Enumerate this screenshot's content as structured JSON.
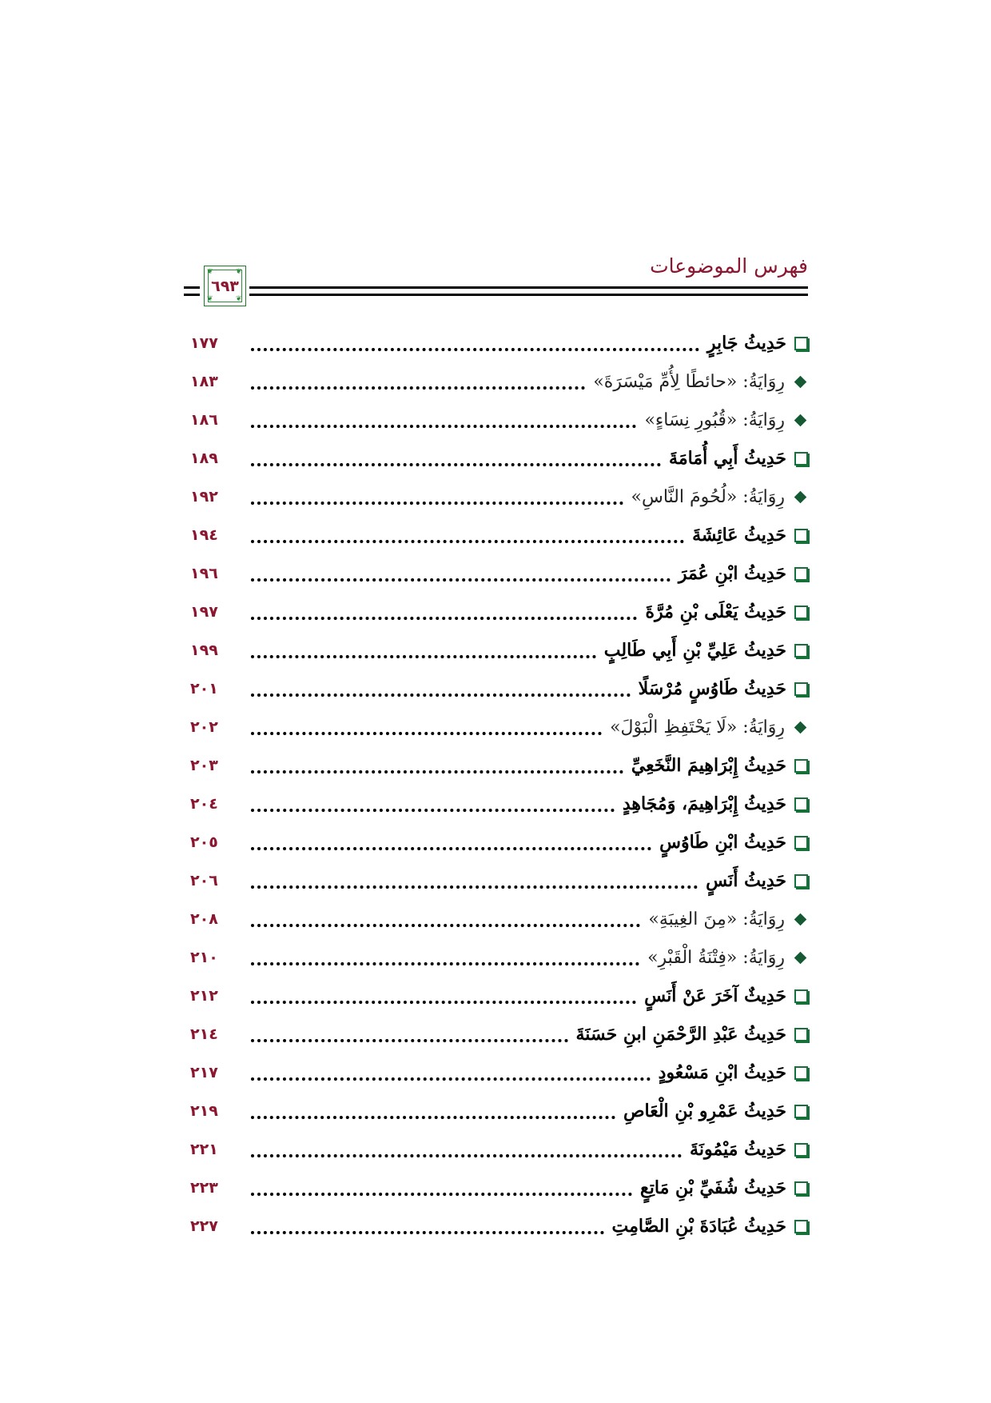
{
  "header": {
    "title": "فهرس الموضوعات",
    "page_number": "٦٩٣"
  },
  "colors": {
    "accent": "#8b1630",
    "icon": "#16703a"
  },
  "entries": [
    {
      "type": "main",
      "text": "حَدِيثُ جَابِرٍ",
      "page": "١٧٧"
    },
    {
      "type": "sub",
      "text": "رِوَايَةُ: «حائطًا لِأُمِّ مَيْسَرَةَ»",
      "page": "١٨٣"
    },
    {
      "type": "sub",
      "text": "رِوَايَةُ: «قُبُورِ نِسَاءٍ»",
      "page": "١٨٦"
    },
    {
      "type": "main",
      "text": "حَدِيثُ أَبِي أُمَامَةَ",
      "page": "١٨٩"
    },
    {
      "type": "sub",
      "text": "رِوَايَةُ: «لُحُومَ النَّاسِ»",
      "page": "١٩٢"
    },
    {
      "type": "main",
      "text": "حَدِيثُ عَائِشَةَ",
      "page": "١٩٤"
    },
    {
      "type": "main",
      "text": "حَدِيثُ ابْنِ عُمَرَ",
      "page": "١٩٦"
    },
    {
      "type": "main",
      "text": "حَدِيثُ يَعْلَى بْنِ مُرَّةَ",
      "page": "١٩٧"
    },
    {
      "type": "main",
      "text": "حَدِيثُ عَلِيِّ بْنِ أَبِي طَالِبٍ",
      "page": "١٩٩"
    },
    {
      "type": "main",
      "text": "حَدِيثُ طَاوُسٍ مُرْسَلًا",
      "page": "٢٠١"
    },
    {
      "type": "sub",
      "text": "رِوَايَةُ: «لَا يَحْتَفِظِ الْبَوْلَ»",
      "page": "٢٠٢"
    },
    {
      "type": "main",
      "text": "حَدِيثُ إِبْرَاهِيمَ النَّخَعِيِّ",
      "page": "٢٠٣"
    },
    {
      "type": "main",
      "text": "حَدِيثُ إِبْرَاهِيمَ، وَمُجَاهِدٍ",
      "page": "٢٠٤"
    },
    {
      "type": "main",
      "text": "حَدِيثُ ابْنِ طَاوُسٍ",
      "page": "٢٠٥"
    },
    {
      "type": "main",
      "text": "حَدِيثُ أَنَسٍ",
      "page": "٢٠٦"
    },
    {
      "type": "sub",
      "text": "رِوَايَةُ: «مِنَ الغِيبَةِ»",
      "page": "٢٠٨"
    },
    {
      "type": "sub",
      "text": "رِوَايَةُ: «فِتْنَةُ الْقَبْرِ»",
      "page": "٢١٠"
    },
    {
      "type": "main",
      "text": "حَدِيثٌ آخَرَ عَنْ أَنَسٍ",
      "page": "٢١٢"
    },
    {
      "type": "main",
      "text": "حَدِيثُ عَبْدِ الرَّحْمَنِ ابنِ حَسَنَةَ",
      "page": "٢١٤"
    },
    {
      "type": "main",
      "text": "حَدِيثُ ابْنِ مَسْعُودٍ",
      "page": "٢١٧"
    },
    {
      "type": "main",
      "text": "حَدِيثُ عَمْرِو بْنِ الْعَاصِ",
      "page": "٢١٩"
    },
    {
      "type": "main",
      "text": "حَدِيثُ مَيْمُونَةَ",
      "page": "٢٢١"
    },
    {
      "type": "main",
      "text": "حَدِيثُ شُفَيِّ بْنِ مَاتِعٍ",
      "page": "٢٢٣"
    },
    {
      "type": "main",
      "text": "حَدِيثُ عُبَادَةَ بْنِ الصَّامِتِ",
      "page": "٢٢٧"
    }
  ]
}
